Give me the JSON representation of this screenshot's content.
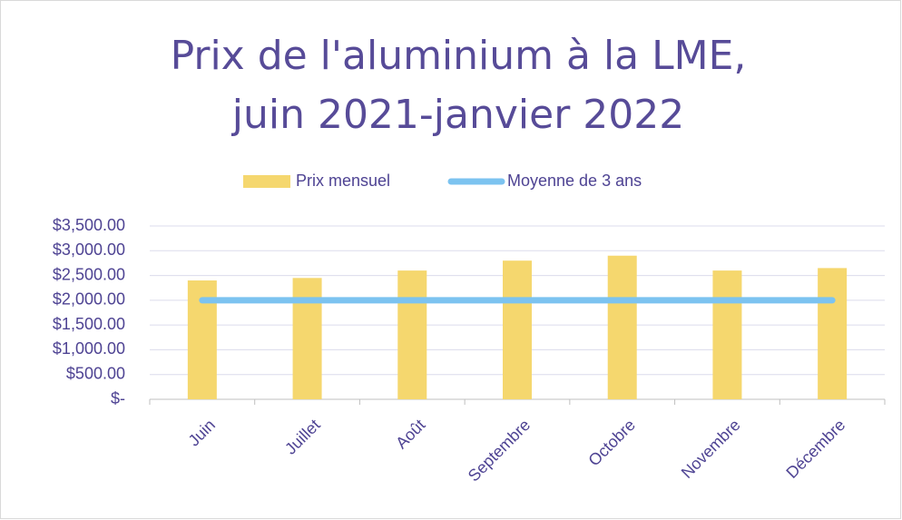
{
  "chart_data": {
    "type": "bar",
    "title": [
      "Prix de l'aluminium à la LME,",
      "juin 2021-janvier 2022"
    ],
    "categories": [
      "Juin",
      "Juillet",
      "Août",
      "Septembre",
      "Octobre",
      "Novembre",
      "Décembre"
    ],
    "series": [
      {
        "name": "Prix mensuel",
        "type": "bar",
        "color": "#f5d76e",
        "values": [
          2400,
          2450,
          2600,
          2800,
          2900,
          2600,
          2650
        ]
      },
      {
        "name": "Moyenne de 3 ans",
        "type": "line",
        "color": "#7cc3f0",
        "values": [
          2000,
          2000,
          2000,
          2000,
          2000,
          2000,
          2000
        ]
      }
    ],
    "ylim": [
      0,
      3500
    ],
    "yticks": [
      {
        "value": 0,
        "label": "$-"
      },
      {
        "value": 500,
        "label": "$500.00"
      },
      {
        "value": 1000,
        "label": "$1,000.00"
      },
      {
        "value": 1500,
        "label": "$1,500.00"
      },
      {
        "value": 2000,
        "label": "$2,000.00"
      },
      {
        "value": 2500,
        "label": "$2,500.00"
      },
      {
        "value": 3000,
        "label": "$3,000.00"
      },
      {
        "value": 3500,
        "label": "$3,500.00"
      }
    ],
    "grid": true,
    "legend": "top"
  }
}
